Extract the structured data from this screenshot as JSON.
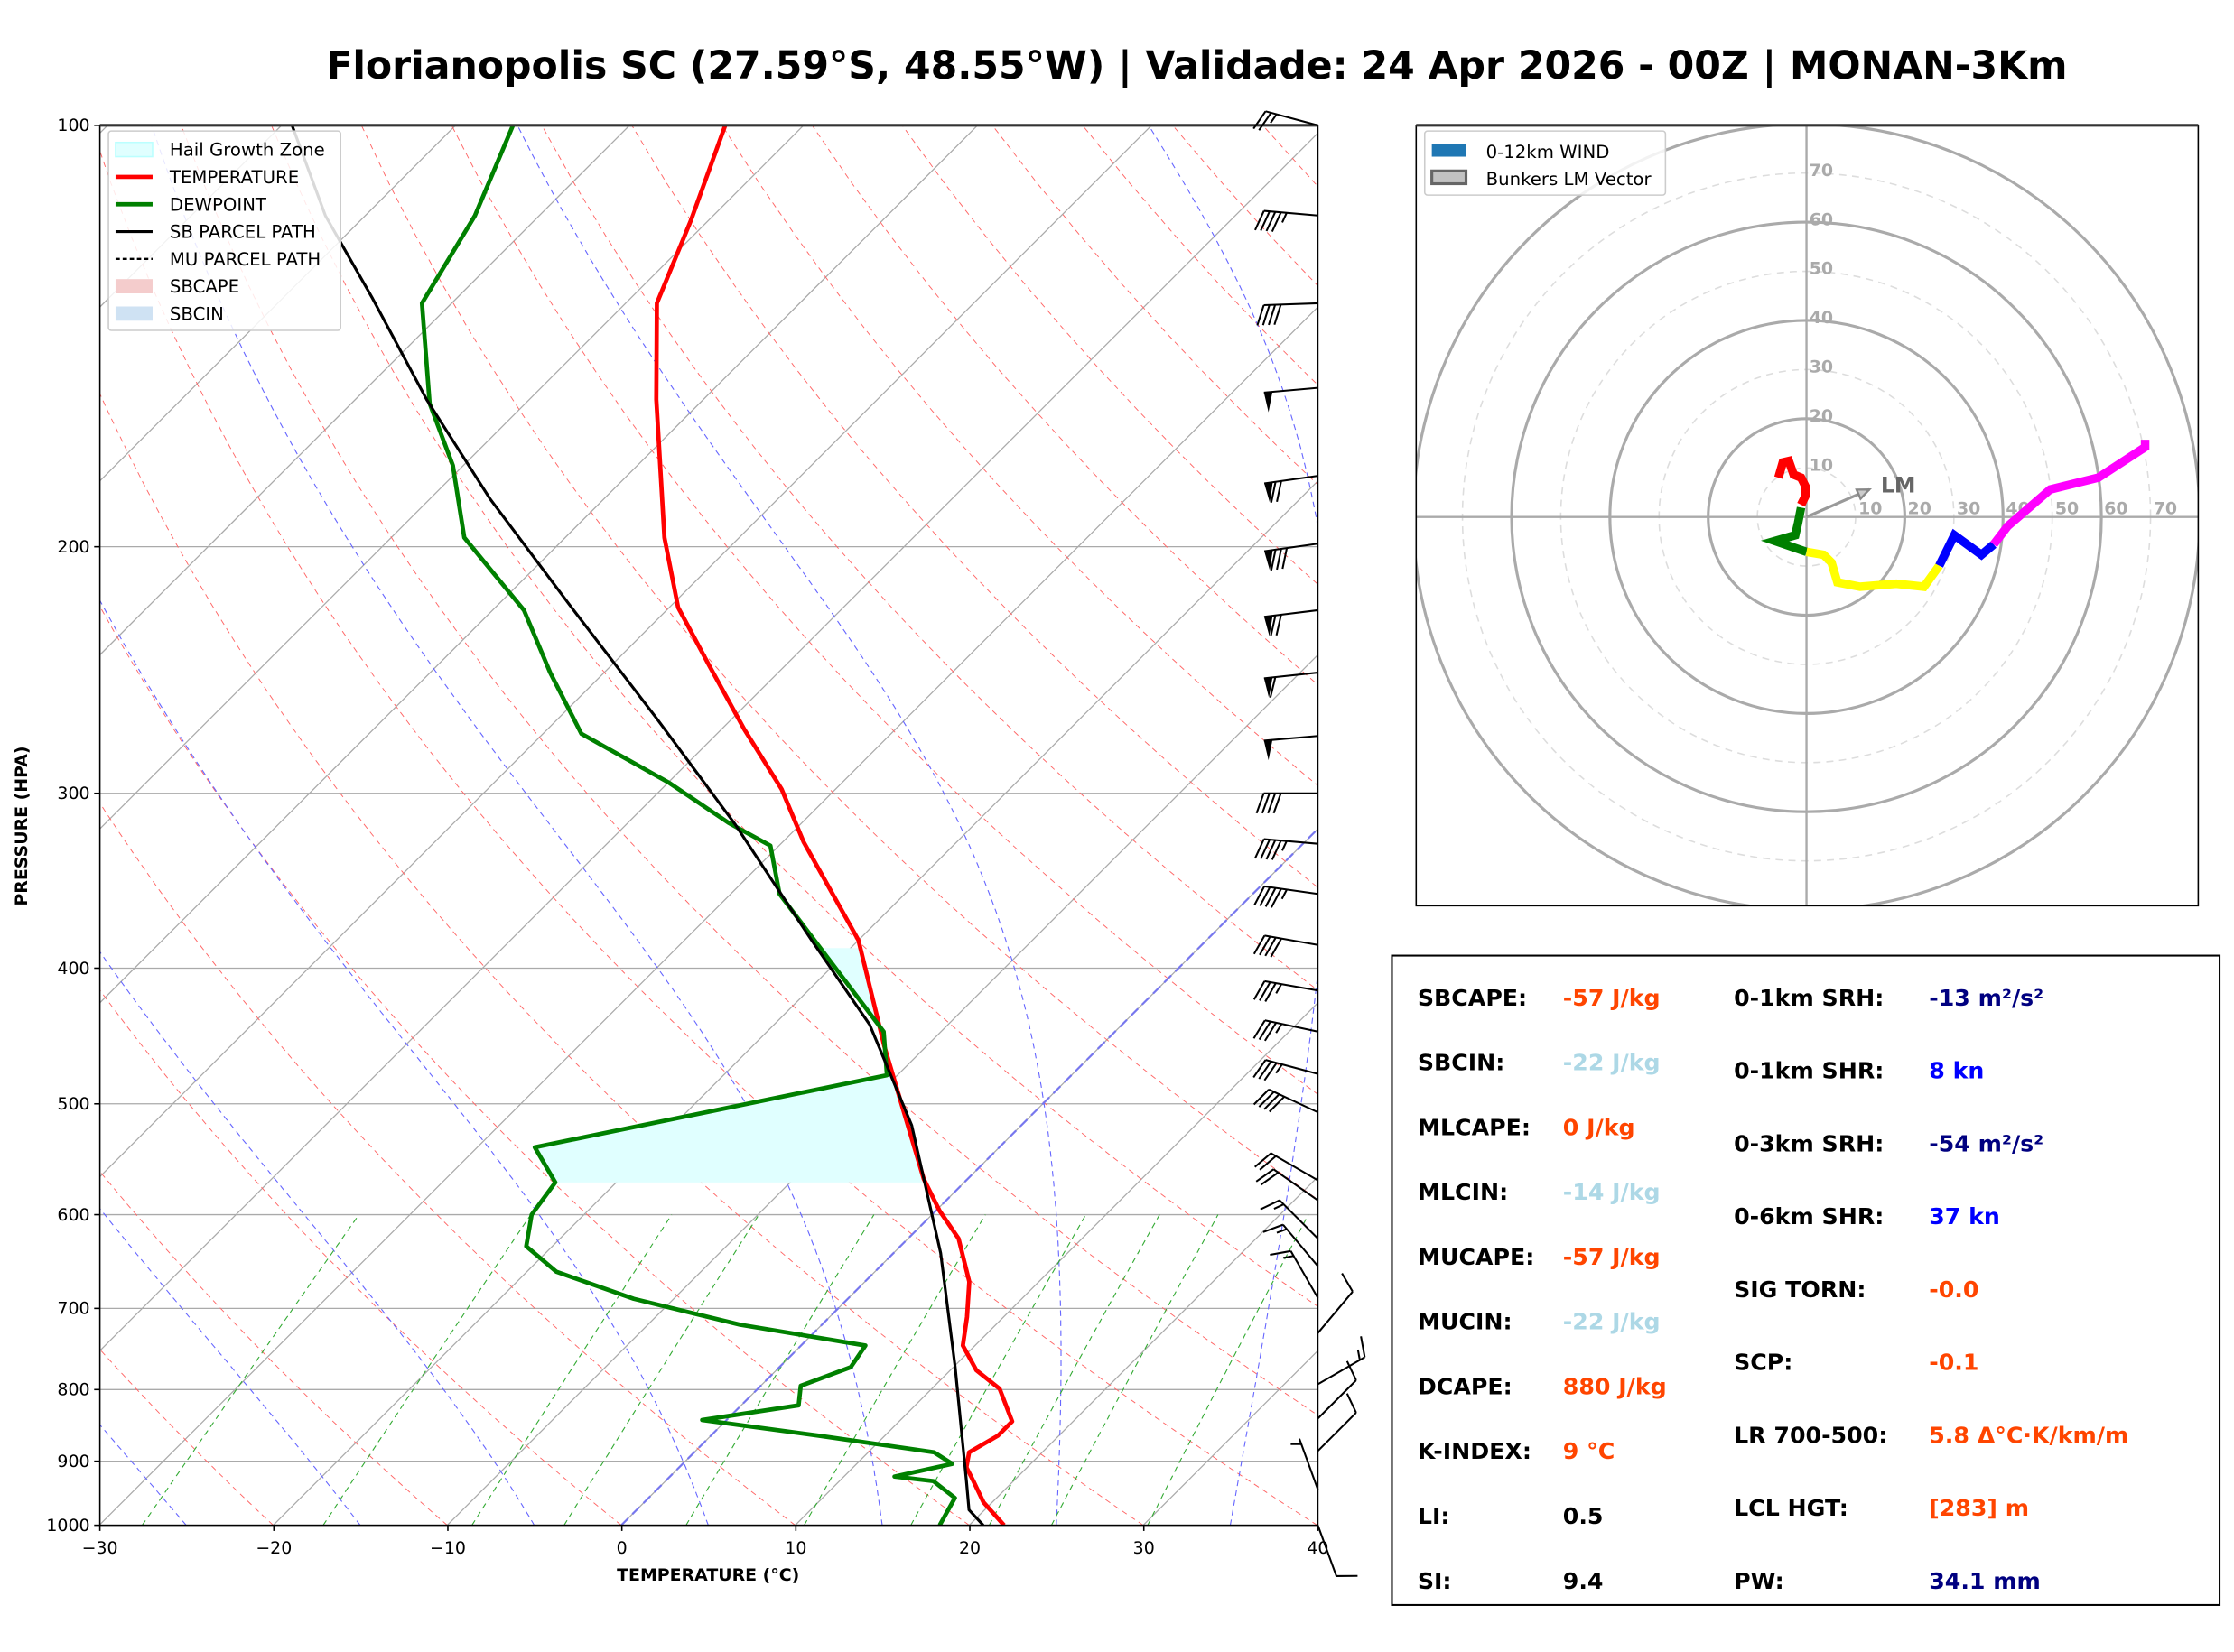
{
  "title": "Florianopolis SC (27.59°S, 48.55°W) | Validade: 24 Apr 2026 - 00Z | MONAN-3Km",
  "chart_data": [
    {
      "type": "line",
      "subtype": "skew-t log-p",
      "xlabel": "TEMPERATURE (°C)",
      "ylabel": "PRESSURE (HPA)",
      "xlim": [
        -30,
        40
      ],
      "ylim": [
        1000,
        100
      ],
      "yscale": "log",
      "xticks": [
        "−30",
        "−20",
        "−10",
        "0",
        "10",
        "20",
        "30",
        "40"
      ],
      "yticks": [
        "100",
        "200",
        "300",
        "400",
        "500",
        "600",
        "700",
        "800",
        "900",
        "1000"
      ],
      "grid": true,
      "legend_position": "top-left",
      "legend": [
        "Hail Growth Zone",
        "TEMPERATURE",
        "DEWPOINT",
        "SB PARCEL PATH",
        "MU PARCEL PATH",
        "SBCAPE",
        "SBCIN"
      ],
      "colors": {
        "temperature": "#ff0000",
        "dewpoint": "#008000",
        "parcel": "#000000",
        "hail": "#e0ffff",
        "sbcape": "#f4cccc",
        "sbcin": "#cfe2f3",
        "dry_adiabat": "#ff6666",
        "moist_adiabat": "#6666ff",
        "mixing_ratio": "#33aa33",
        "isotherm": "#aaaaaa"
      },
      "series": [
        {
          "name": "TEMPERATURE",
          "p": [
            1000,
            963,
            930,
            909,
            887,
            863,
            843,
            799,
            775,
            744,
            710,
            670,
            624,
            596,
            566,
            455,
            382,
            325,
            298,
            270,
            243,
            221,
            197,
            157,
            134,
            117,
            100
          ],
          "T": [
            22.0,
            19.5,
            17.7,
            16.5,
            15.8,
            16.5,
            16.5,
            13.9,
            11.5,
            9.3,
            7.9,
            6.0,
            2.9,
            0.2,
            -2.5,
            -12.4,
            -20.0,
            -28.8,
            -33.1,
            -38.7,
            -44.4,
            -49.5,
            -54.3,
            -62.7,
            -68.2,
            -71.0,
            -74.5
          ]
        },
        {
          "name": "DEWPOINT",
          "p": [
            1000,
            956,
            930,
            923,
            904,
            887,
            863,
            841,
            821,
            795,
            771,
            744,
            719,
            689,
            659,
            632,
            600,
            569,
            537,
            477,
            444,
            386,
            354,
            327,
            315,
            295,
            272,
            246,
            222,
            197,
            175,
            158,
            134,
            116,
            100
          ],
          "T": [
            18.3,
            17.6,
            15.4,
            12.9,
            15.5,
            13.8,
            6.2,
            -1.4,
            3.3,
            2.3,
            4.1,
            3.7,
            -4.7,
            -12.3,
            -18.3,
            -21.5,
            -23.0,
            -23.5,
            -26.7,
            -10.6,
            -13.3,
            -21.9,
            -27.2,
            -30.5,
            -34.2,
            -39.9,
            -47.8,
            -53.1,
            -58.2,
            -65.8,
            -70.6,
            -75.5,
            -81.7,
            -83.7,
            -86.7
          ]
        },
        {
          "name": "SB PARCEL PATH",
          "p": [
            1000,
            975,
            930,
            771,
            639,
            518,
            439,
            382,
            316,
            265,
            220,
            185,
            157,
            133,
            116,
            100
          ],
          "T": [
            20.8,
            19.1,
            17.3,
            10.1,
            2.7,
            -6.3,
            -14.5,
            -22.7,
            -33.7,
            -44.4,
            -55.9,
            -66.5,
            -75.9,
            -84.8,
            -92.3,
            -99.4
          ]
        }
      ],
      "hail_growth_zone_p": [
        569,
        386
      ],
      "wind_barbs": {
        "units": "kn",
        "p": [
          100,
          116,
          134,
          154,
          178,
          199,
          222,
          246,
          273,
          300,
          326,
          354,
          385,
          415,
          444,
          476,
          507,
          567,
          586,
          624,
          653,
          688,
          729,
          793,
          839,
          885,
          943,
          1000
        ],
        "speed": [
          25,
          45,
          40,
          50,
          70,
          80,
          70,
          60,
          50,
          40,
          45,
          45,
          40,
          35,
          35,
          35,
          40,
          20,
          20,
          15,
          15,
          15,
          10,
          15,
          10,
          10,
          5,
          10
        ],
        "direction": [
          285,
          275,
          268,
          265,
          262,
          262,
          263,
          264,
          265,
          270,
          275,
          278,
          280,
          280,
          282,
          285,
          295,
          300,
          305,
          315,
          320,
          330,
          40,
          60,
          45,
          45,
          340,
          160
        ]
      }
    },
    {
      "type": "line",
      "subtype": "hodograph",
      "legend_position": "top-left",
      "legend": [
        "0-12km WIND",
        "Bunkers LM Vector"
      ],
      "ring_labels": [
        "10",
        "20",
        "30",
        "40",
        "50",
        "60",
        "70"
      ],
      "rings_kn": [
        10,
        20,
        30,
        40,
        50,
        60,
        70,
        80
      ],
      "series": [
        {
          "color": "#ff0000",
          "u": [
            -5.7,
            -4.8,
            -3.6,
            -2.6,
            -1.1,
            -0.2,
            -0.2,
            -1.1
          ],
          "v": [
            8.0,
            11.1,
            11.4,
            8.6,
            8.0,
            6.2,
            4.3,
            2.5
          ]
        },
        {
          "color": "#008000",
          "u": [
            -1.1,
            -1.7,
            -2.3,
            -6.4,
            -2.6,
            0
          ],
          "v": [
            1.9,
            -1.2,
            -3.7,
            -4.9,
            -6.2,
            -7.1
          ]
        },
        {
          "color": "#ffff00",
          "u": [
            0,
            3.5,
            5.1,
            6.3,
            10.9,
            18.3,
            23.9,
            27.0
          ],
          "v": [
            -7.1,
            -7.7,
            -9.3,
            -13.3,
            -14.2,
            -13.6,
            -14.2,
            -9.9
          ]
        },
        {
          "color": "#0000ff",
          "u": [
            27.0,
            30.1,
            35.6,
            38.1
          ],
          "v": [
            -9.9,
            -3.7,
            -7.7,
            -5.6
          ]
        },
        {
          "color": "#ff00ff",
          "u": [
            38.1,
            40.9,
            49.6,
            59.4,
            68.9,
            68.9
          ],
          "v": [
            -5.6,
            -1.9,
            5.6,
            8.0,
            14.2,
            15.7
          ]
        }
      ],
      "bunkers_lm": {
        "label": "LM",
        "u": 12.8,
        "v": 5.6,
        "color": "#999999"
      },
      "legend_colors": {
        "wind": "#1f77b4",
        "lm": "#999999"
      }
    }
  ],
  "stats": {
    "left": [
      {
        "label": "SBCAPE:",
        "value": "-57 J/kg",
        "color": "#ff4500"
      },
      {
        "label": "SBCIN:",
        "value": "-22 J/kg",
        "color": "#add8e6"
      },
      {
        "label": "MLCAPE:",
        "value": "0 J/kg",
        "color": "#ff4500"
      },
      {
        "label": "MLCIN:",
        "value": "-14 J/kg",
        "color": "#add8e6"
      },
      {
        "label": "MUCAPE:",
        "value": "-57 J/kg",
        "color": "#ff4500"
      },
      {
        "label": "MUCIN:",
        "value": "-22 J/kg",
        "color": "#add8e6"
      },
      {
        "label": "DCAPE:",
        "value": "880 J/kg",
        "color": "#ff4500"
      },
      {
        "label": "K-INDEX:",
        "value": "9 °C",
        "color": "#ff4500"
      },
      {
        "label": "LI:",
        "value": "0.5",
        "color": "#000000"
      },
      {
        "label": "SI:",
        "value": "9.4",
        "color": "#000000"
      }
    ],
    "right": [
      {
        "label": "0-1km SRH:",
        "value": "-13 m²/s²",
        "color": "#000080"
      },
      {
        "label": "0-1km SHR:",
        "value": "8 kn",
        "color": "#0000ff"
      },
      {
        "label": "0-3km SRH:",
        "value": "-54 m²/s²",
        "color": "#000080"
      },
      {
        "label": "0-6km SHR:",
        "value": "37 kn",
        "color": "#0000ff"
      },
      {
        "label": "SIG TORN:",
        "value": "-0.0",
        "color": "#ff4500"
      },
      {
        "label": "SCP:",
        "value": "-0.1",
        "color": "#ff4500"
      },
      {
        "label": "LR 700-500:",
        "value": "5.8 Δ°C·K/km/m",
        "color": "#ff4500"
      },
      {
        "label": "LCL HGT:",
        "value": "[283] m",
        "color": "#ff4500"
      },
      {
        "label": "PW:",
        "value": "34.1 mm",
        "color": "#000080"
      }
    ]
  }
}
